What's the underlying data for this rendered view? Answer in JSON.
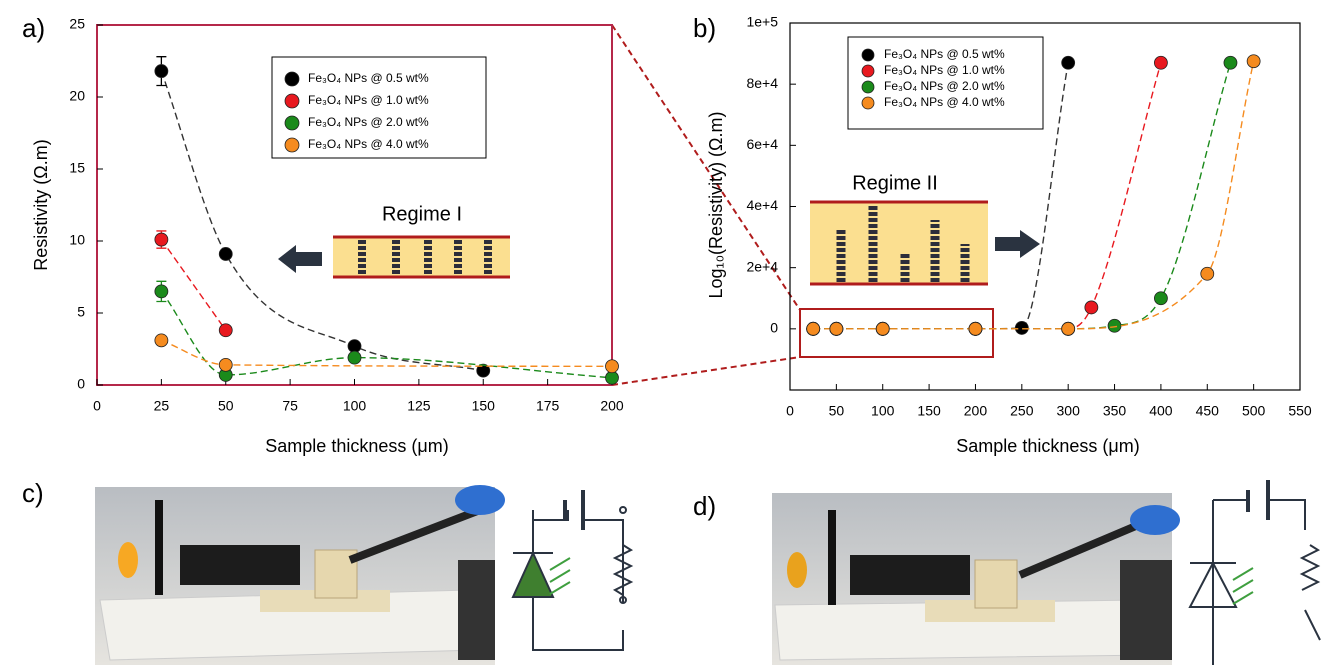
{
  "chart_data": [
    {
      "type": "scatter",
      "panel": "a)",
      "x_label": "Sample thickness (μm)",
      "y_label": "Resistivity (Ω.m)",
      "annotation": "Regime I",
      "frame_color": "#b5284a",
      "xlim": [
        0,
        200
      ],
      "xticks": [
        0,
        25,
        50,
        75,
        100,
        125,
        150,
        175,
        200
      ],
      "ylim": [
        0,
        25
      ],
      "yticks": [
        0,
        5,
        10,
        15,
        20,
        25
      ],
      "series": [
        {
          "name": "Fe₃O₄ NPs @ 0.5 wt%",
          "color": "#000000",
          "x": [
            25,
            50,
            100,
            150
          ],
          "values": [
            21.8,
            9.1,
            2.7,
            1.0
          ],
          "errors": [
            1.0,
            null,
            null,
            null
          ]
        },
        {
          "name": "Fe₃O₄ NPs @ 1.0 wt%",
          "color": "#e8191f",
          "x": [
            25,
            50
          ],
          "values": [
            10.1,
            3.8
          ],
          "errors": [
            0.6,
            null
          ]
        },
        {
          "name": "Fe₃O₄ NPs @ 2.0 wt%",
          "color": "#1b8a1b",
          "x": [
            25,
            50,
            100,
            200
          ],
          "values": [
            6.5,
            0.7,
            1.9,
            0.5
          ],
          "errors": [
            0.7,
            null,
            null,
            null
          ]
        },
        {
          "name": "Fe₃O₄ NPs @ 4.0 wt%",
          "color": "#f58b1f",
          "x": [
            25,
            50,
            200
          ],
          "values": [
            3.1,
            1.4,
            1.3
          ],
          "errors": [
            null,
            null,
            null
          ]
        }
      ]
    },
    {
      "type": "scatter",
      "panel": "b)",
      "x_label": "Sample thickness (μm)",
      "y_label": "Log₁₀(Resistivity) (Ω.m)",
      "annotation": "Regime II",
      "frame_color": "#000000",
      "xlim": [
        0,
        550
      ],
      "xticks": [
        0,
        50,
        100,
        150,
        200,
        250,
        300,
        350,
        400,
        450,
        500,
        550
      ],
      "ylim": [
        -20000,
        100000
      ],
      "yticks": [
        0,
        {
          "value": 20000,
          "label": "2e+4"
        },
        {
          "value": 40000,
          "label": "4e+4"
        },
        {
          "value": 60000,
          "label": "6e+4"
        },
        {
          "value": 80000,
          "label": "8e+4"
        },
        {
          "value": 100000,
          "label": "1e+5"
        }
      ],
      "series": [
        {
          "name": "Fe₃O₄ NPs @ 0.5 wt%",
          "color": "#000000",
          "x": [
            25,
            50,
            100,
            200,
            250,
            300
          ],
          "values": [
            0,
            0,
            0,
            0,
            300,
            87000
          ]
        },
        {
          "name": "Fe₃O₄ NPs @ 1.0 wt%",
          "color": "#e8191f",
          "x": [
            25,
            50,
            100,
            200,
            300,
            325,
            400
          ],
          "values": [
            0,
            0,
            0,
            0,
            0,
            7000,
            87000
          ]
        },
        {
          "name": "Fe₃O₄ NPs @ 2.0 wt%",
          "color": "#1b8a1b",
          "x": [
            25,
            50,
            100,
            200,
            300,
            350,
            400,
            475
          ],
          "values": [
            0,
            0,
            0,
            0,
            0,
            1000,
            10000,
            87000
          ]
        },
        {
          "name": "Fe₃O₄ NPs @ 4.0 wt%",
          "color": "#f58b1f",
          "x": [
            25,
            50,
            100,
            200,
            300,
            450,
            500
          ],
          "values": [
            0,
            0,
            0,
            0,
            0,
            18000,
            87500
          ]
        }
      ]
    }
  ],
  "photos": [
    {
      "label": "c)"
    },
    {
      "label": "d)"
    }
  ]
}
